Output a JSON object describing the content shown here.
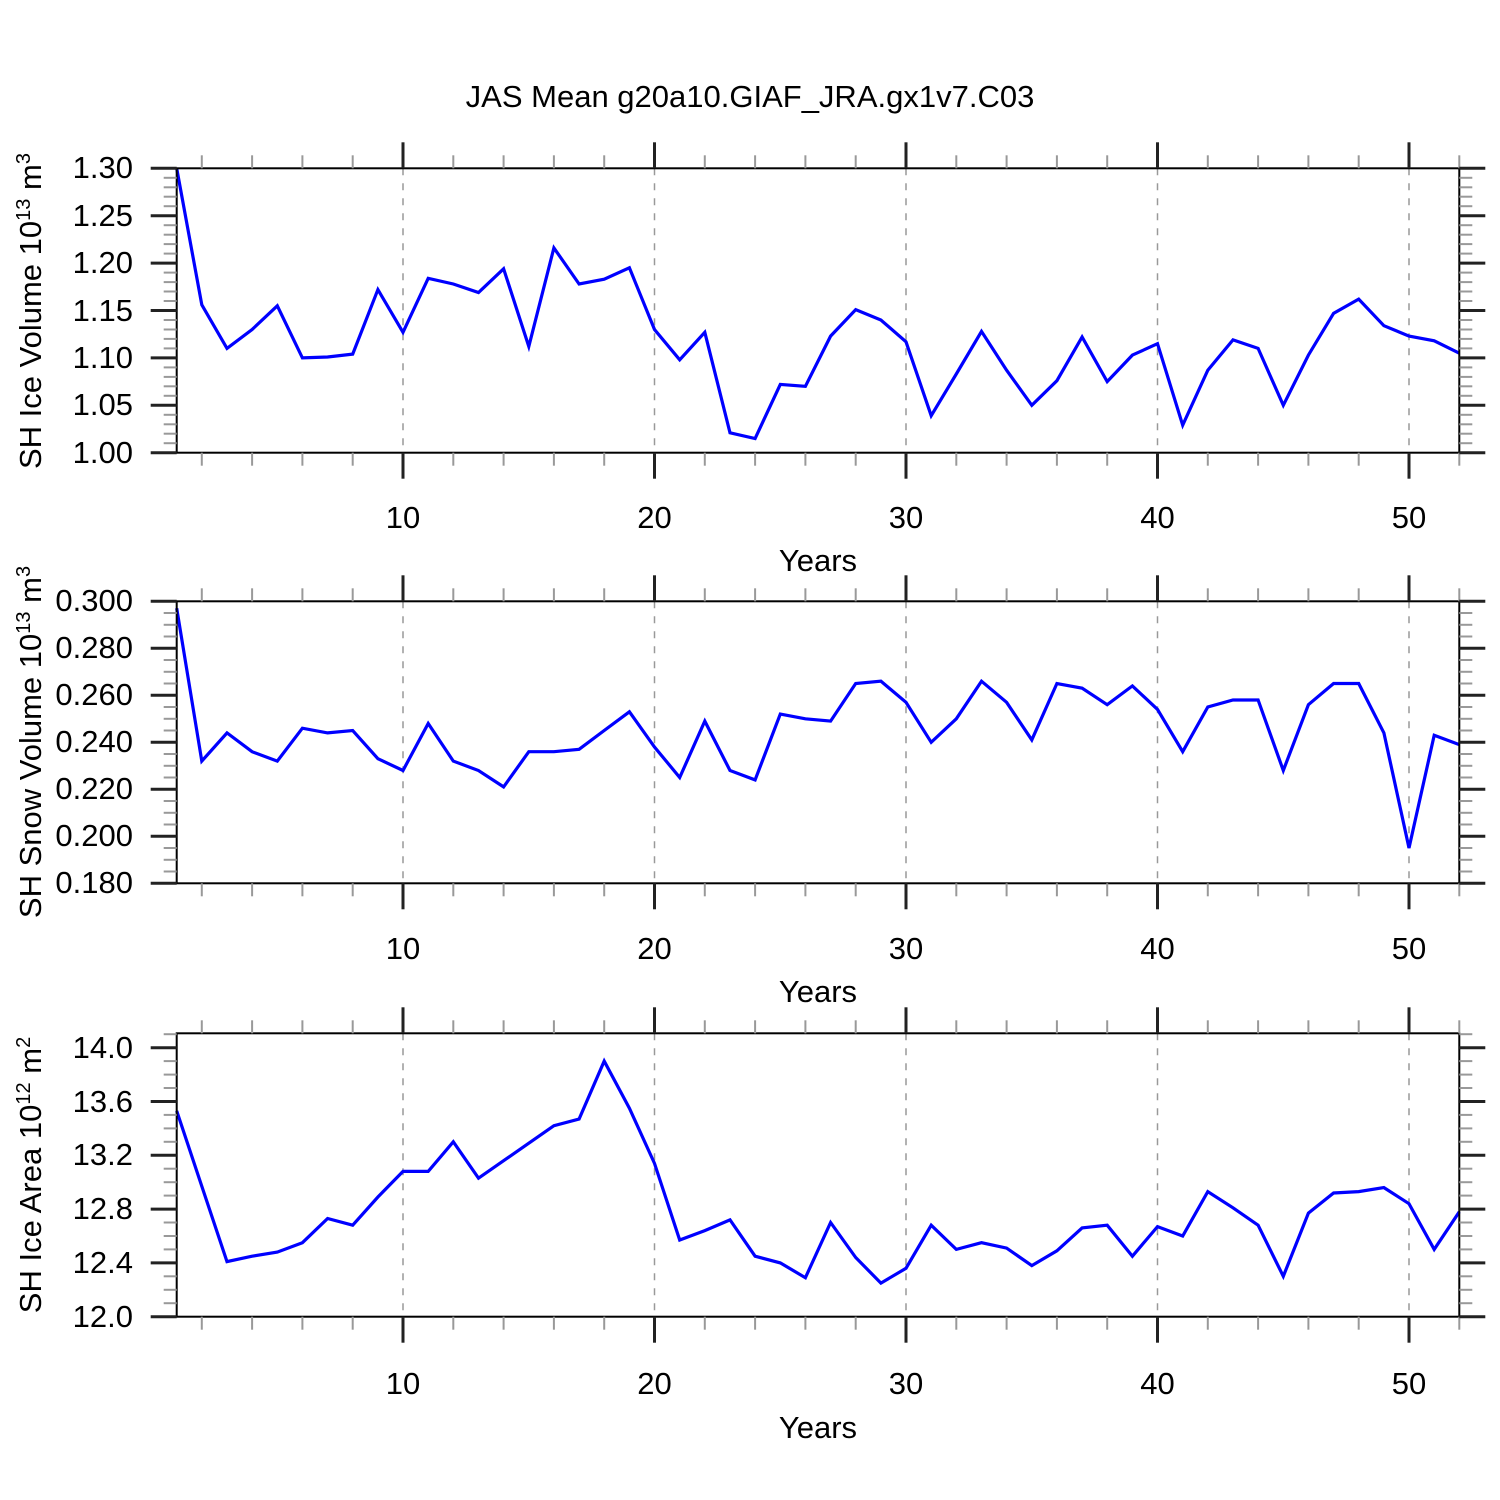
{
  "title": "JAS Mean g20a10.GIAF_JRA.gx1v7.C03",
  "line_color": "#0000ff",
  "grid_color": "#999999",
  "chart_data": [
    {
      "type": "line",
      "ylabel": "SH Ice Volume 10^13 m^3",
      "ylabel_parts": {
        "base": "SH Ice Volume 10",
        "sup1": "13",
        "unit": "m",
        "sup2": "3"
      },
      "xlabel": "Years",
      "xlim": [
        1,
        52
      ],
      "ylim": [
        1.0,
        1.3
      ],
      "yticks": [
        1.0,
        1.05,
        1.1,
        1.15,
        1.2,
        1.25,
        1.3
      ],
      "ytick_labels": [
        "1.00",
        "1.05",
        "1.10",
        "1.15",
        "1.20",
        "1.25",
        "1.30"
      ],
      "xticks": [
        10,
        20,
        30,
        40,
        50
      ],
      "x_minor_step": 2,
      "y_minor_step": 0.01,
      "grid": "dashed-vertical-at-major-xticks",
      "legend": "none",
      "x": [
        1,
        2,
        3,
        4,
        5,
        6,
        7,
        8,
        9,
        10,
        11,
        12,
        13,
        14,
        15,
        16,
        17,
        18,
        19,
        20,
        21,
        22,
        23,
        24,
        25,
        26,
        27,
        28,
        29,
        30,
        31,
        32,
        33,
        34,
        35,
        36,
        37,
        38,
        39,
        40,
        41,
        42,
        43,
        44,
        45,
        46,
        47,
        48,
        49,
        50,
        51,
        52
      ],
      "values": [
        1.3,
        1.156,
        1.11,
        1.13,
        1.155,
        1.1,
        1.101,
        1.104,
        1.172,
        1.127,
        1.184,
        1.178,
        1.169,
        1.194,
        1.112,
        1.216,
        1.178,
        1.183,
        1.195,
        1.13,
        1.098,
        1.127,
        1.021,
        1.015,
        1.072,
        1.07,
        1.123,
        1.151,
        1.14,
        1.117,
        1.039,
        1.083,
        1.128,
        1.087,
        1.05,
        1.076,
        1.122,
        1.075,
        1.103,
        1.115,
        1.029,
        1.087,
        1.119,
        1.11,
        1.05,
        1.103,
        1.147,
        1.162,
        1.134,
        1.123,
        1.118,
        1.105
      ]
    },
    {
      "type": "line",
      "ylabel": "SH Snow Volume 10^13 m^3",
      "ylabel_parts": {
        "base": "SH Snow Volume 10",
        "sup1": "13",
        "unit": "m",
        "sup2": "3"
      },
      "xlabel": "Years",
      "xlim": [
        1,
        52
      ],
      "ylim": [
        0.18,
        0.3
      ],
      "yticks": [
        0.18,
        0.2,
        0.22,
        0.24,
        0.26,
        0.28,
        0.3
      ],
      "ytick_labels": [
        "0.180",
        "0.200",
        "0.220",
        "0.240",
        "0.260",
        "0.280",
        "0.300"
      ],
      "xticks": [
        10,
        20,
        30,
        40,
        50
      ],
      "x_minor_step": 2,
      "y_minor_step": 0.005,
      "grid": "dashed-vertical-at-major-xticks",
      "legend": "none",
      "x": [
        1,
        2,
        3,
        4,
        5,
        6,
        7,
        8,
        9,
        10,
        11,
        12,
        13,
        14,
        15,
        16,
        17,
        18,
        19,
        20,
        21,
        22,
        23,
        24,
        25,
        26,
        27,
        28,
        29,
        30,
        31,
        32,
        33,
        34,
        35,
        36,
        37,
        38,
        39,
        40,
        41,
        42,
        43,
        44,
        45,
        46,
        47,
        48,
        49,
        50,
        51,
        52
      ],
      "values": [
        0.297,
        0.232,
        0.244,
        0.236,
        0.232,
        0.246,
        0.244,
        0.245,
        0.233,
        0.228,
        0.248,
        0.232,
        0.228,
        0.221,
        0.236,
        0.236,
        0.237,
        0.245,
        0.253,
        0.238,
        0.225,
        0.249,
        0.228,
        0.224,
        0.252,
        0.25,
        0.249,
        0.265,
        0.266,
        0.257,
        0.24,
        0.25,
        0.266,
        0.257,
        0.241,
        0.265,
        0.263,
        0.256,
        0.264,
        0.254,
        0.236,
        0.255,
        0.258,
        0.258,
        0.228,
        0.256,
        0.265,
        0.265,
        0.244,
        0.195,
        0.243,
        0.239
      ]
    },
    {
      "type": "line",
      "ylabel": "SH Ice Area 10^12 m^2",
      "ylabel_parts": {
        "base": "SH Ice Area 10",
        "sup1": "12",
        "unit": "m",
        "sup2": "2"
      },
      "xlabel": "Years",
      "xlim": [
        1,
        52
      ],
      "ylim": [
        12.0,
        14.107
      ],
      "yticks": [
        12.0,
        12.4,
        12.8,
        13.2,
        13.6,
        14.0
      ],
      "ytick_labels": [
        "12.0",
        "12.4",
        "12.8",
        "13.2",
        "13.6",
        "14.0"
      ],
      "xticks": [
        10,
        20,
        30,
        40,
        50
      ],
      "x_minor_step": 2,
      "y_minor_step": 0.1,
      "grid": "dashed-vertical-at-major-xticks",
      "legend": "none",
      "x": [
        1,
        2,
        3,
        4,
        5,
        6,
        7,
        8,
        9,
        10,
        11,
        12,
        13,
        14,
        15,
        16,
        17,
        18,
        19,
        20,
        21,
        22,
        23,
        24,
        25,
        26,
        27,
        28,
        29,
        30,
        31,
        32,
        33,
        34,
        35,
        36,
        37,
        38,
        39,
        40,
        41,
        42,
        43,
        44,
        45,
        46,
        47,
        48,
        49,
        50,
        51,
        52
      ],
      "values": [
        13.53,
        12.97,
        12.41,
        12.45,
        12.48,
        12.55,
        12.73,
        12.68,
        12.89,
        13.08,
        13.08,
        13.3,
        13.03,
        13.16,
        13.29,
        13.42,
        13.47,
        13.9,
        13.55,
        13.14,
        12.57,
        12.64,
        12.72,
        12.45,
        12.4,
        12.29,
        12.7,
        12.44,
        12.25,
        12.36,
        12.68,
        12.5,
        12.55,
        12.51,
        12.38,
        12.49,
        12.66,
        12.68,
        12.45,
        12.67,
        12.6,
        12.93,
        12.81,
        12.68,
        12.3,
        12.77,
        12.92,
        12.93,
        12.96,
        12.84,
        12.5,
        12.78
      ]
    }
  ]
}
